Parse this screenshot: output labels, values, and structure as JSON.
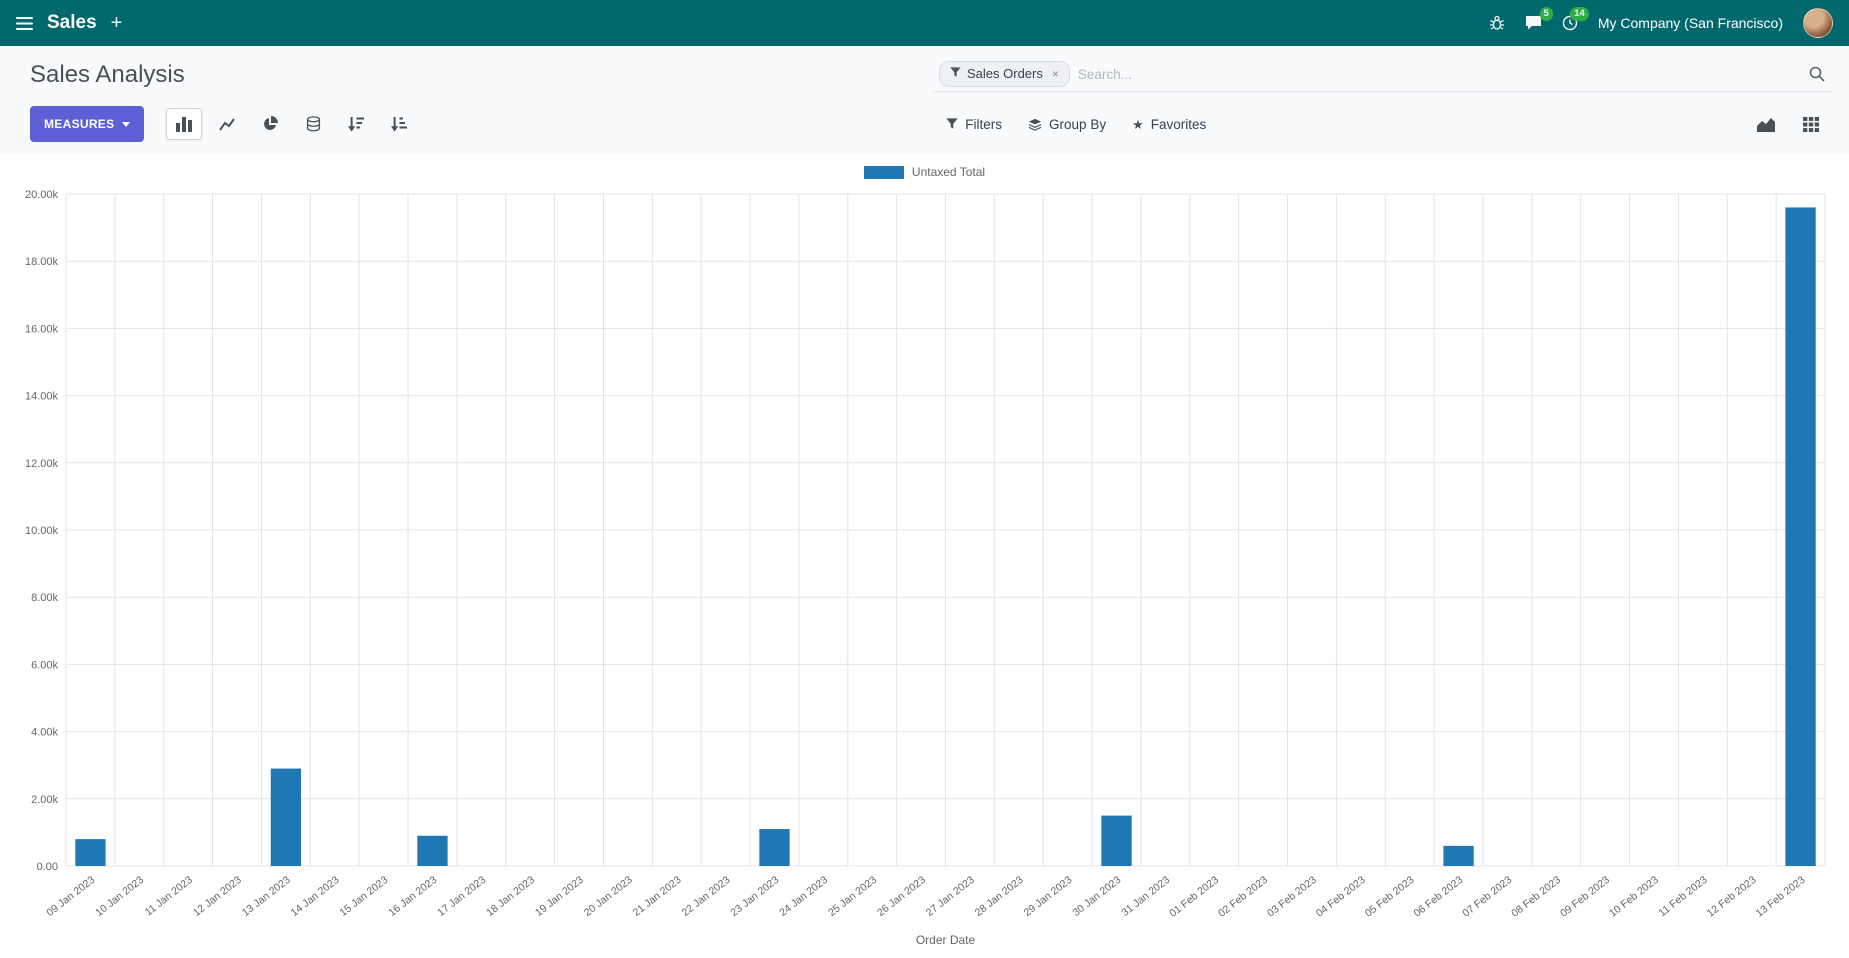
{
  "navbar": {
    "app_name": "Sales",
    "plus_label": "+",
    "messages_count": "5",
    "activities_count": "14",
    "company": "My Company (San Francisco)"
  },
  "control_panel": {
    "title": "Sales Analysis",
    "measures_label": "MEASURES",
    "filters_label": "Filters",
    "group_by_label": "Group By",
    "favorites_label": "Favorites"
  },
  "search": {
    "facet_label": "Sales Orders",
    "remove_label": "×",
    "placeholder": "Search..."
  },
  "chart_data": {
    "type": "bar",
    "title": "",
    "legend": "Untaxed Total",
    "legend_position": "top",
    "xlabel": "Order Date",
    "ylabel": "",
    "ylim": [
      0,
      20000
    ],
    "ytick_step": 2000,
    "grid": true,
    "bar_color": "#1f77b4",
    "categories": [
      "09 Jan 2023",
      "10 Jan 2023",
      "11 Jan 2023",
      "12 Jan 2023",
      "13 Jan 2023",
      "14 Jan 2023",
      "15 Jan 2023",
      "16 Jan 2023",
      "17 Jan 2023",
      "18 Jan 2023",
      "19 Jan 2023",
      "20 Jan 2023",
      "21 Jan 2023",
      "22 Jan 2023",
      "23 Jan 2023",
      "24 Jan 2023",
      "25 Jan 2023",
      "26 Jan 2023",
      "27 Jan 2023",
      "28 Jan 2023",
      "29 Jan 2023",
      "30 Jan 2023",
      "31 Jan 2023",
      "01 Feb 2023",
      "02 Feb 2023",
      "03 Feb 2023",
      "04 Feb 2023",
      "05 Feb 2023",
      "06 Feb 2023",
      "07 Feb 2023",
      "08 Feb 2023",
      "09 Feb 2023",
      "10 Feb 2023",
      "11 Feb 2023",
      "12 Feb 2023",
      "13 Feb 2023"
    ],
    "values": [
      800,
      0,
      0,
      0,
      2900,
      0,
      0,
      900,
      0,
      0,
      0,
      0,
      0,
      0,
      1100,
      0,
      0,
      0,
      0,
      0,
      0,
      1500,
      0,
      0,
      0,
      0,
      0,
      0,
      600,
      0,
      0,
      0,
      0,
      0,
      0,
      19600
    ]
  }
}
